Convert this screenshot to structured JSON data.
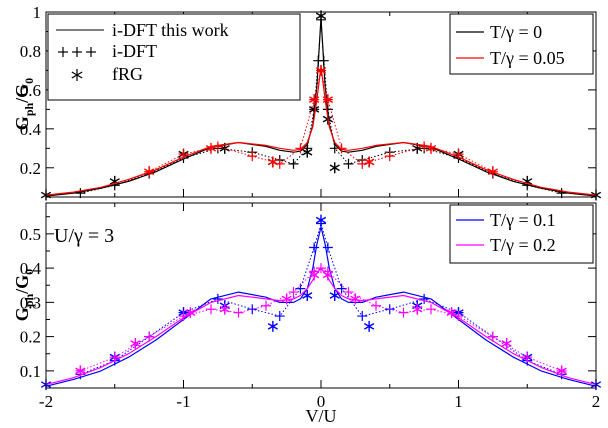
{
  "chart_data": [
    {
      "type": "line",
      "panel": "top",
      "ylabel": "G_ph/G_0",
      "ylabel_main": "G",
      "ylabel_sub": "ph",
      "ylabel_den": "/G",
      "ylabel_den_sub": "0",
      "xlim": [
        -2,
        2
      ],
      "ylim": [
        0.05,
        1.0
      ],
      "yticks": [
        0.2,
        0.4,
        0.6,
        0.8,
        1
      ],
      "ytick_labels": [
        "0.2",
        "0.4",
        "0.6",
        "0.8",
        "1"
      ],
      "xticks": [
        -2,
        -1,
        0,
        1,
        2
      ],
      "grid": false,
      "legend_left": {
        "placement": "top-left",
        "entries": [
          {
            "symbol": "solid-line",
            "label": "i-DFT this work"
          },
          {
            "symbol": "plus-markers",
            "label": "i-DFT"
          },
          {
            "symbol": "star-marker",
            "label": "fRG"
          }
        ]
      },
      "legend_right": {
        "placement": "top-right",
        "entries": [
          {
            "label": "T/γ = 0",
            "color": "#000000"
          },
          {
            "label": "T/γ = 0.05",
            "color": "#ff0000"
          }
        ]
      },
      "series": [
        {
          "name": "T/γ = 0",
          "color": "#000000",
          "line_x": [
            -2.0,
            -1.8,
            -1.6,
            -1.4,
            -1.2,
            -1.0,
            -0.8,
            -0.6,
            -0.4,
            -0.3,
            -0.2,
            -0.15,
            -0.1,
            -0.06,
            -0.03,
            0.0,
            0.03,
            0.06,
            0.1,
            0.15,
            0.2,
            0.3,
            0.4,
            0.6,
            0.8,
            1.0,
            1.2,
            1.4,
            1.6,
            1.8,
            2.0
          ],
          "line_y": [
            0.055,
            0.07,
            0.095,
            0.13,
            0.18,
            0.245,
            0.305,
            0.33,
            0.31,
            0.29,
            0.28,
            0.285,
            0.32,
            0.42,
            0.62,
            0.97,
            0.62,
            0.42,
            0.32,
            0.285,
            0.28,
            0.29,
            0.31,
            0.33,
            0.305,
            0.245,
            0.18,
            0.13,
            0.095,
            0.07,
            0.055
          ],
          "idft_x": [
            -1.75,
            -1.5,
            -1.25,
            -1.0,
            -0.75,
            -0.5,
            -0.3,
            -0.2,
            -0.1,
            -0.05,
            -0.02,
            0.0,
            0.02,
            0.05,
            0.1,
            0.2,
            0.3,
            0.5,
            0.75,
            1.0,
            1.25,
            1.5,
            1.75
          ],
          "idft_y": [
            0.07,
            0.11,
            0.17,
            0.25,
            0.3,
            0.28,
            0.24,
            0.22,
            0.3,
            0.5,
            0.75,
            0.96,
            0.75,
            0.5,
            0.3,
            0.22,
            0.24,
            0.28,
            0.3,
            0.25,
            0.17,
            0.11,
            0.07
          ],
          "frg_x": [
            -2.0,
            -1.5,
            -1.0,
            -0.7,
            -0.35,
            -0.1,
            -0.05,
            0.0,
            0.05,
            0.1,
            0.35,
            0.7,
            1.0,
            1.5,
            2.0
          ],
          "frg_y": [
            0.06,
            0.13,
            0.27,
            0.3,
            0.23,
            0.28,
            0.5,
            0.98,
            0.45,
            0.2,
            0.23,
            0.3,
            0.27,
            0.13,
            0.06
          ]
        },
        {
          "name": "T/γ = 0.05",
          "color": "#ff0000",
          "line_x": [
            -2.0,
            -1.8,
            -1.6,
            -1.4,
            -1.2,
            -1.0,
            -0.8,
            -0.6,
            -0.4,
            -0.3,
            -0.2,
            -0.15,
            -0.1,
            -0.06,
            -0.03,
            0.0,
            0.03,
            0.06,
            0.1,
            0.15,
            0.2,
            0.3,
            0.4,
            0.6,
            0.8,
            1.0,
            1.2,
            1.4,
            1.6,
            1.8,
            2.0
          ],
          "line_y": [
            0.06,
            0.075,
            0.1,
            0.14,
            0.19,
            0.255,
            0.31,
            0.33,
            0.315,
            0.3,
            0.29,
            0.295,
            0.33,
            0.41,
            0.55,
            0.72,
            0.55,
            0.41,
            0.33,
            0.295,
            0.29,
            0.3,
            0.315,
            0.33,
            0.31,
            0.255,
            0.19,
            0.14,
            0.1,
            0.075,
            0.06
          ],
          "idft_x": [
            -1.25,
            -1.0,
            -0.75,
            -0.5,
            -0.3,
            -0.15,
            -0.05,
            0.0,
            0.05,
            0.15,
            0.3,
            0.5,
            0.75,
            1.0,
            1.25
          ],
          "idft_y": [
            0.18,
            0.27,
            0.31,
            0.26,
            0.22,
            0.3,
            0.55,
            0.7,
            0.55,
            0.3,
            0.22,
            0.26,
            0.31,
            0.27,
            0.18
          ],
          "frg_x": [
            -1.25,
            -0.8,
            -0.35,
            -0.05,
            0.0,
            0.05,
            0.35,
            0.8,
            1.25
          ],
          "frg_y": [
            0.18,
            0.3,
            0.23,
            0.55,
            0.7,
            0.55,
            0.23,
            0.3,
            0.18
          ]
        }
      ]
    },
    {
      "type": "line",
      "panel": "bottom",
      "ylabel": "G_ph/G_0",
      "ylabel_main": "G",
      "ylabel_sub": "ph",
      "ylabel_den": "/G",
      "ylabel_den_sub": "0",
      "xlabel": "V/U",
      "annotation": "U/γ = 3",
      "xlim": [
        -2,
        2
      ],
      "ylim": [
        0.05,
        0.59
      ],
      "yticks": [
        0.1,
        0.2,
        0.3,
        0.4,
        0.5
      ],
      "ytick_labels": [
        "0.1",
        "0.2",
        "0.3",
        "0.4",
        "0.5"
      ],
      "xticks": [
        -2,
        -1,
        0,
        1,
        2
      ],
      "xtick_labels": [
        "-2",
        "-1",
        "0",
        "1",
        "2"
      ],
      "grid": false,
      "legend_right": {
        "placement": "top-right",
        "entries": [
          {
            "label": "T/γ = 0.1",
            "color": "#0000ff"
          },
          {
            "label": "T/γ = 0.2",
            "color": "#ff00ff"
          }
        ]
      },
      "series": [
        {
          "name": "T/γ = 0.1",
          "color": "#0000ff",
          "line_x": [
            -2.0,
            -1.8,
            -1.6,
            -1.4,
            -1.2,
            -1.0,
            -0.8,
            -0.6,
            -0.4,
            -0.3,
            -0.2,
            -0.15,
            -0.1,
            -0.06,
            -0.03,
            0.0,
            0.03,
            0.06,
            0.1,
            0.15,
            0.2,
            0.3,
            0.4,
            0.6,
            0.8,
            1.0,
            1.2,
            1.4,
            1.6,
            1.8,
            2.0
          ],
          "line_y": [
            0.055,
            0.075,
            0.1,
            0.14,
            0.19,
            0.25,
            0.31,
            0.33,
            0.315,
            0.3,
            0.3,
            0.31,
            0.34,
            0.4,
            0.47,
            0.52,
            0.47,
            0.4,
            0.34,
            0.31,
            0.3,
            0.3,
            0.315,
            0.33,
            0.31,
            0.25,
            0.19,
            0.14,
            0.1,
            0.075,
            0.055
          ],
          "idft_x": [
            -1.75,
            -1.5,
            -1.25,
            -1.0,
            -0.75,
            -0.5,
            -0.3,
            -0.15,
            -0.05,
            0.0,
            0.05,
            0.15,
            0.3,
            0.5,
            0.75,
            1.0,
            1.25,
            1.5,
            1.75
          ],
          "idft_y": [
            0.09,
            0.13,
            0.2,
            0.27,
            0.31,
            0.28,
            0.26,
            0.34,
            0.46,
            0.53,
            0.46,
            0.34,
            0.26,
            0.28,
            0.31,
            0.27,
            0.2,
            0.13,
            0.09
          ],
          "frg_x": [
            -2.0,
            -1.5,
            -1.0,
            -0.7,
            -0.35,
            -0.1,
            0.0,
            0.1,
            0.35,
            0.7,
            1.0,
            1.5,
            2.0
          ],
          "frg_y": [
            0.06,
            0.14,
            0.27,
            0.29,
            0.23,
            0.32,
            0.54,
            0.32,
            0.23,
            0.29,
            0.27,
            0.14,
            0.06
          ]
        },
        {
          "name": "T/γ = 0.2",
          "color": "#ff00ff",
          "line_x": [
            -2.0,
            -1.8,
            -1.6,
            -1.4,
            -1.2,
            -1.0,
            -0.8,
            -0.6,
            -0.4,
            -0.3,
            -0.2,
            -0.15,
            -0.1,
            -0.06,
            -0.03,
            0.0,
            0.03,
            0.06,
            0.1,
            0.15,
            0.2,
            0.3,
            0.4,
            0.6,
            0.8,
            1.0,
            1.2,
            1.4,
            1.6,
            1.8,
            2.0
          ],
          "line_y": [
            0.06,
            0.08,
            0.11,
            0.15,
            0.2,
            0.255,
            0.3,
            0.32,
            0.31,
            0.305,
            0.31,
            0.32,
            0.34,
            0.365,
            0.385,
            0.4,
            0.385,
            0.365,
            0.34,
            0.32,
            0.31,
            0.305,
            0.31,
            0.32,
            0.3,
            0.255,
            0.2,
            0.15,
            0.11,
            0.08,
            0.06
          ],
          "idft_x": [
            -1.75,
            -1.5,
            -1.25,
            -1.0,
            -0.8,
            -0.6,
            -0.4,
            -0.2,
            -0.05,
            0.0,
            0.05,
            0.2,
            0.4,
            0.6,
            0.8,
            1.0,
            1.25,
            1.5,
            1.75
          ],
          "idft_y": [
            0.1,
            0.14,
            0.2,
            0.26,
            0.28,
            0.27,
            0.29,
            0.33,
            0.39,
            0.4,
            0.39,
            0.33,
            0.29,
            0.27,
            0.28,
            0.26,
            0.2,
            0.14,
            0.1
          ],
          "frg_x": [
            -1.75,
            -1.35,
            -0.95,
            -0.7,
            -0.25,
            -0.05,
            0.05,
            0.25,
            0.7,
            0.95,
            1.35,
            1.75
          ],
          "frg_y": [
            0.1,
            0.18,
            0.27,
            0.28,
            0.31,
            0.38,
            0.38,
            0.31,
            0.28,
            0.27,
            0.18,
            0.1
          ]
        }
      ]
    }
  ]
}
